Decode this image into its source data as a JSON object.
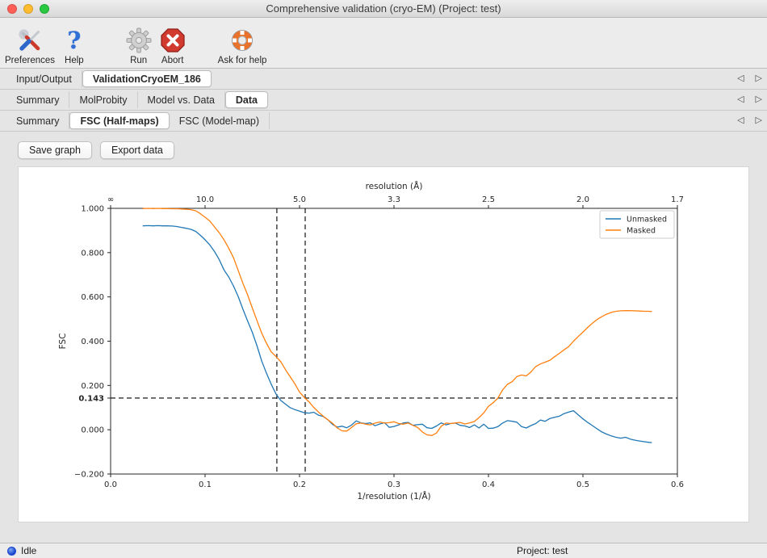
{
  "window": {
    "title": "Comprehensive validation (cryo-EM) (Project: test)"
  },
  "toolbar": {
    "items": [
      {
        "label": "Preferences",
        "icon": "crossed-tools-icon"
      },
      {
        "label": "Help",
        "icon": "question-mark-icon",
        "glyph": "?"
      },
      {
        "label": "Run",
        "icon": "gear-icon"
      },
      {
        "label": "Abort",
        "icon": "stop-x-icon"
      },
      {
        "label": "Ask for help",
        "icon": "lifebuoy-icon"
      }
    ]
  },
  "icons": {
    "tab_scroll_left": "◁",
    "tab_scroll_right": "▷"
  },
  "tab_rows": [
    {
      "tabs": [
        {
          "label": "Input/Output",
          "selected": false
        },
        {
          "label": "ValidationCryoEM_186",
          "selected": true
        }
      ]
    },
    {
      "tabs": [
        {
          "label": "Summary",
          "selected": false
        },
        {
          "label": "MolProbity",
          "selected": false
        },
        {
          "label": "Model vs. Data",
          "selected": false
        },
        {
          "label": "Data",
          "selected": true
        }
      ]
    },
    {
      "tabs": [
        {
          "label": "Summary",
          "selected": false
        },
        {
          "label": "FSC (Half-maps)",
          "selected": true
        },
        {
          "label": "FSC (Model-map)",
          "selected": false
        }
      ]
    }
  ],
  "buttons": {
    "save_graph": "Save graph",
    "export_data": "Export data"
  },
  "statusbar": {
    "left": "Idle",
    "right": "Project: test",
    "dot_color": "#1a47cf"
  },
  "chart_data": {
    "type": "line",
    "xlabel": "1/resolution (1/Å)",
    "ylabel": "FSC",
    "top_axis_label": "resolution (Å)",
    "xlim": [
      0.0,
      0.6
    ],
    "ylim": [
      -0.2,
      1.0
    ],
    "x_ticks": [
      {
        "v": 0.0,
        "label": "0.0"
      },
      {
        "v": 0.1,
        "label": "0.1"
      },
      {
        "v": 0.2,
        "label": "0.2"
      },
      {
        "v": 0.3,
        "label": "0.3"
      },
      {
        "v": 0.4,
        "label": "0.4"
      },
      {
        "v": 0.5,
        "label": "0.5"
      },
      {
        "v": 0.6,
        "label": "0.6"
      }
    ],
    "top_ticks": [
      {
        "v": 0.0,
        "label": "∞"
      },
      {
        "v": 0.1,
        "label": "10.0"
      },
      {
        "v": 0.2,
        "label": "5.0"
      },
      {
        "v": 0.3,
        "label": "3.3"
      },
      {
        "v": 0.4,
        "label": "2.5"
      },
      {
        "v": 0.5,
        "label": "2.0"
      },
      {
        "v": 0.6,
        "label": "1.7"
      }
    ],
    "y_ticks": [
      {
        "v": -0.2,
        "label": "−0.200"
      },
      {
        "v": 0.0,
        "label": "0.000"
      },
      {
        "v": 0.143,
        "label": "0.143",
        "bold": true
      },
      {
        "v": 0.2,
        "label": "0.200"
      },
      {
        "v": 0.4,
        "label": "0.400"
      },
      {
        "v": 0.6,
        "label": "0.600"
      },
      {
        "v": 0.8,
        "label": "0.800"
      },
      {
        "v": 1.0,
        "label": "1.000"
      }
    ],
    "hline": 0.143,
    "vlines": [
      0.176,
      0.206
    ],
    "legend_position": "upper right",
    "grid": false,
    "series": [
      {
        "name": "Unmasked",
        "color": "#1f77b4",
        "points": [
          [
            0.034,
            0.921
          ],
          [
            0.04,
            0.922
          ],
          [
            0.045,
            0.921
          ],
          [
            0.05,
            0.922
          ],
          [
            0.055,
            0.921
          ],
          [
            0.06,
            0.921
          ],
          [
            0.065,
            0.92
          ],
          [
            0.07,
            0.918
          ],
          [
            0.075,
            0.914
          ],
          [
            0.08,
            0.91
          ],
          [
            0.085,
            0.905
          ],
          [
            0.09,
            0.896
          ],
          [
            0.095,
            0.878
          ],
          [
            0.1,
            0.858
          ],
          [
            0.105,
            0.835
          ],
          [
            0.11,
            0.805
          ],
          [
            0.115,
            0.768
          ],
          [
            0.12,
            0.722
          ],
          [
            0.125,
            0.69
          ],
          [
            0.13,
            0.65
          ],
          [
            0.135,
            0.602
          ],
          [
            0.14,
            0.545
          ],
          [
            0.145,
            0.492
          ],
          [
            0.15,
            0.44
          ],
          [
            0.155,
            0.378
          ],
          [
            0.16,
            0.31
          ],
          [
            0.165,
            0.255
          ],
          [
            0.17,
            0.206
          ],
          [
            0.175,
            0.162
          ],
          [
            0.18,
            0.133
          ],
          [
            0.185,
            0.116
          ],
          [
            0.19,
            0.1
          ],
          [
            0.195,
            0.091
          ],
          [
            0.2,
            0.084
          ],
          [
            0.205,
            0.077
          ],
          [
            0.21,
            0.075
          ],
          [
            0.215,
            0.079
          ],
          [
            0.22,
            0.066
          ],
          [
            0.225,
            0.06
          ],
          [
            0.23,
            0.045
          ],
          [
            0.235,
            0.024
          ],
          [
            0.24,
            0.012
          ],
          [
            0.245,
            0.016
          ],
          [
            0.25,
            0.009
          ],
          [
            0.255,
            0.021
          ],
          [
            0.26,
            0.04
          ],
          [
            0.265,
            0.031
          ],
          [
            0.27,
            0.028
          ],
          [
            0.275,
            0.031
          ],
          [
            0.28,
            0.018
          ],
          [
            0.285,
            0.026
          ],
          [
            0.29,
            0.032
          ],
          [
            0.295,
            0.011
          ],
          [
            0.3,
            0.015
          ],
          [
            0.305,
            0.022
          ],
          [
            0.31,
            0.031
          ],
          [
            0.315,
            0.033
          ],
          [
            0.32,
            0.02
          ],
          [
            0.325,
            0.023
          ],
          [
            0.33,
            0.025
          ],
          [
            0.335,
            0.009
          ],
          [
            0.34,
            0.006
          ],
          [
            0.345,
            0.017
          ],
          [
            0.35,
            0.031
          ],
          [
            0.355,
            0.022
          ],
          [
            0.36,
            0.028
          ],
          [
            0.365,
            0.03
          ],
          [
            0.37,
            0.02
          ],
          [
            0.375,
            0.017
          ],
          [
            0.38,
            0.01
          ],
          [
            0.385,
            0.022
          ],
          [
            0.39,
            0.008
          ],
          [
            0.395,
            0.025
          ],
          [
            0.4,
            0.006
          ],
          [
            0.405,
            0.007
          ],
          [
            0.41,
            0.014
          ],
          [
            0.415,
            0.03
          ],
          [
            0.42,
            0.041
          ],
          [
            0.425,
            0.038
          ],
          [
            0.43,
            0.034
          ],
          [
            0.435,
            0.014
          ],
          [
            0.44,
            0.008
          ],
          [
            0.445,
            0.019
          ],
          [
            0.45,
            0.028
          ],
          [
            0.455,
            0.044
          ],
          [
            0.46,
            0.038
          ],
          [
            0.465,
            0.051
          ],
          [
            0.47,
            0.056
          ],
          [
            0.475,
            0.061
          ],
          [
            0.48,
            0.073
          ],
          [
            0.485,
            0.08
          ],
          [
            0.49,
            0.086
          ],
          [
            0.495,
            0.067
          ],
          [
            0.5,
            0.049
          ],
          [
            0.505,
            0.033
          ],
          [
            0.51,
            0.019
          ],
          [
            0.515,
            0.004
          ],
          [
            0.52,
            -0.01
          ],
          [
            0.525,
            -0.02
          ],
          [
            0.53,
            -0.028
          ],
          [
            0.535,
            -0.034
          ],
          [
            0.54,
            -0.038
          ],
          [
            0.545,
            -0.034
          ],
          [
            0.55,
            -0.042
          ],
          [
            0.555,
            -0.047
          ],
          [
            0.56,
            -0.051
          ],
          [
            0.565,
            -0.054
          ],
          [
            0.57,
            -0.057
          ],
          [
            0.573,
            -0.058
          ]
        ]
      },
      {
        "name": "Masked",
        "color": "#ff7f0e",
        "points": [
          [
            0.034,
            0.999
          ],
          [
            0.04,
            1.0
          ],
          [
            0.045,
            0.999
          ],
          [
            0.05,
            1.0
          ],
          [
            0.055,
            0.999
          ],
          [
            0.06,
            0.999
          ],
          [
            0.065,
            0.998
          ],
          [
            0.07,
            0.998
          ],
          [
            0.075,
            0.997
          ],
          [
            0.08,
            0.996
          ],
          [
            0.085,
            0.994
          ],
          [
            0.09,
            0.989
          ],
          [
            0.095,
            0.976
          ],
          [
            0.1,
            0.96
          ],
          [
            0.105,
            0.943
          ],
          [
            0.11,
            0.916
          ],
          [
            0.115,
            0.89
          ],
          [
            0.12,
            0.858
          ],
          [
            0.125,
            0.82
          ],
          [
            0.13,
            0.778
          ],
          [
            0.135,
            0.72
          ],
          [
            0.14,
            0.662
          ],
          [
            0.145,
            0.61
          ],
          [
            0.15,
            0.55
          ],
          [
            0.155,
            0.492
          ],
          [
            0.16,
            0.436
          ],
          [
            0.165,
            0.39
          ],
          [
            0.17,
            0.352
          ],
          [
            0.175,
            0.331
          ],
          [
            0.18,
            0.308
          ],
          [
            0.185,
            0.272
          ],
          [
            0.19,
            0.24
          ],
          [
            0.195,
            0.208
          ],
          [
            0.2,
            0.17
          ],
          [
            0.205,
            0.146
          ],
          [
            0.21,
            0.126
          ],
          [
            0.215,
            0.101
          ],
          [
            0.22,
            0.08
          ],
          [
            0.225,
            0.061
          ],
          [
            0.23,
            0.045
          ],
          [
            0.235,
            0.029
          ],
          [
            0.24,
            0.008
          ],
          [
            0.245,
            -0.005
          ],
          [
            0.25,
            -0.006
          ],
          [
            0.255,
            0.01
          ],
          [
            0.26,
            0.027
          ],
          [
            0.265,
            0.03
          ],
          [
            0.27,
            0.025
          ],
          [
            0.275,
            0.022
          ],
          [
            0.28,
            0.03
          ],
          [
            0.285,
            0.035
          ],
          [
            0.29,
            0.03
          ],
          [
            0.295,
            0.032
          ],
          [
            0.3,
            0.036
          ],
          [
            0.305,
            0.028
          ],
          [
            0.31,
            0.025
          ],
          [
            0.315,
            0.03
          ],
          [
            0.32,
            0.02
          ],
          [
            0.325,
            0.01
          ],
          [
            0.33,
            -0.01
          ],
          [
            0.335,
            -0.023
          ],
          [
            0.34,
            -0.026
          ],
          [
            0.345,
            -0.015
          ],
          [
            0.35,
            0.016
          ],
          [
            0.355,
            0.03
          ],
          [
            0.36,
            0.028
          ],
          [
            0.365,
            0.031
          ],
          [
            0.37,
            0.033
          ],
          [
            0.375,
            0.026
          ],
          [
            0.38,
            0.031
          ],
          [
            0.385,
            0.037
          ],
          [
            0.39,
            0.055
          ],
          [
            0.395,
            0.076
          ],
          [
            0.4,
            0.106
          ],
          [
            0.405,
            0.122
          ],
          [
            0.41,
            0.143
          ],
          [
            0.415,
            0.18
          ],
          [
            0.42,
            0.205
          ],
          [
            0.425,
            0.217
          ],
          [
            0.43,
            0.24
          ],
          [
            0.435,
            0.247
          ],
          [
            0.44,
            0.243
          ],
          [
            0.445,
            0.261
          ],
          [
            0.45,
            0.285
          ],
          [
            0.455,
            0.297
          ],
          [
            0.46,
            0.305
          ],
          [
            0.465,
            0.314
          ],
          [
            0.47,
            0.33
          ],
          [
            0.475,
            0.345
          ],
          [
            0.48,
            0.361
          ],
          [
            0.485,
            0.376
          ],
          [
            0.49,
            0.4
          ],
          [
            0.495,
            0.421
          ],
          [
            0.5,
            0.441
          ],
          [
            0.505,
            0.462
          ],
          [
            0.51,
            0.481
          ],
          [
            0.515,
            0.498
          ],
          [
            0.52,
            0.511
          ],
          [
            0.525,
            0.522
          ],
          [
            0.53,
            0.53
          ],
          [
            0.535,
            0.535
          ],
          [
            0.54,
            0.537
          ],
          [
            0.545,
            0.538
          ],
          [
            0.55,
            0.538
          ],
          [
            0.555,
            0.537
          ],
          [
            0.56,
            0.536
          ],
          [
            0.565,
            0.535
          ],
          [
            0.57,
            0.535
          ],
          [
            0.573,
            0.534
          ]
        ]
      }
    ]
  }
}
